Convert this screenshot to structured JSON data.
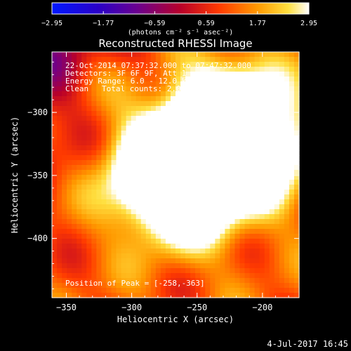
{
  "chart_data": {
    "type": "heatmap",
    "title": "Reconstructed RHESSI Image",
    "xlabel": "Heliocentric X (arcsec)",
    "ylabel": "Heliocentric Y (arcsec)",
    "xlim": [
      -361,
      -172
    ],
    "ylim": [
      -447,
      -252
    ],
    "xticks": [
      -350,
      -300,
      -250,
      -200
    ],
    "yticks": [
      -300,
      -350,
      -400
    ],
    "xtick_labels": [
      "−350",
      "−300",
      "−250",
      "−200"
    ],
    "ytick_labels": [
      "−300",
      "−350",
      "−400"
    ],
    "colorbar": {
      "range": [
        -2.95,
        2.95
      ],
      "ticks": [
        -2.95,
        -1.77,
        -0.59,
        0.59,
        1.77,
        2.95
      ],
      "tick_labels": [
        "−2.95",
        "−1.77",
        "−0.59",
        "0.59",
        "1.77",
        "2.95"
      ],
      "units": "(photons cm⁻² s⁻¹ asec⁻²)"
    },
    "annotations": {
      "time": "22-Oct-2014 07:37:32.000 to 07:47:32.000",
      "detectors": "Detectors: 3F 6F 9F, Att 1",
      "energy": "Energy Range: 6.0 - 12.0 keV",
      "algorithm": "Clean",
      "counts": "Total counts: 2.04E+05",
      "peak": "Position of Peak = [-258,-363]"
    },
    "peak": [
      -258,
      -363
    ],
    "sources": [
      {
        "x": -258,
        "y": -363,
        "amp": 2.95
      },
      {
        "x": -225,
        "y": -298,
        "amp": 2.55
      },
      {
        "x": -208,
        "y": -335,
        "amp": 2.6
      },
      {
        "x": -283,
        "y": -345,
        "amp": 2.2
      },
      {
        "x": -255,
        "y": -318,
        "amp": 1.6
      },
      {
        "x": -330,
        "y": -280,
        "amp": 1.2
      }
    ],
    "colormap": "blue-purple-red-orange-yellow-white"
  },
  "footer": {
    "timestamp": "4-Jul-2017 16:45"
  }
}
